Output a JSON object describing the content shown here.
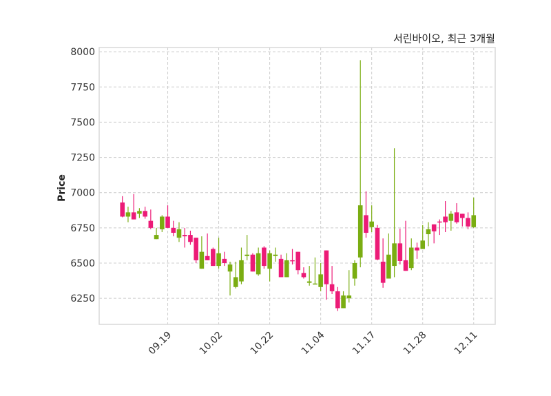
{
  "chart_data": {
    "type": "candlestick",
    "title": "서린바이오, 최근 3개월",
    "xlabel": "",
    "ylabel": "Price",
    "ylim": [
      6065,
      8030
    ],
    "xlim": [
      -4.1,
      65.8
    ],
    "grid": true,
    "colors": {
      "up": "#7aad12",
      "down": "#ec1b77",
      "grid": "#cccccc",
      "frame": "#d9d9d9"
    },
    "yticks": [
      6250,
      6500,
      6750,
      7000,
      7250,
      7500,
      7750,
      8000
    ],
    "xticks": [
      {
        "index": 8,
        "label": "09.19"
      },
      {
        "index": 17,
        "label": "10.02"
      },
      {
        "index": 26,
        "label": "10.22"
      },
      {
        "index": 35,
        "label": "11.04"
      },
      {
        "index": 44,
        "label": "11.17"
      },
      {
        "index": 53,
        "label": "11.28"
      },
      {
        "index": 62,
        "label": "12.11"
      }
    ],
    "ohlc_fields": [
      "open",
      "high",
      "low",
      "close"
    ],
    "candles": [
      [
        6930,
        6975,
        6825,
        6830
      ],
      [
        6830,
        6900,
        6790,
        6860
      ],
      [
        6860,
        6990,
        6810,
        6810
      ],
      [
        6850,
        6890,
        6820,
        6870
      ],
      [
        6870,
        6900,
        6815,
        6830
      ],
      [
        6800,
        6880,
        6740,
        6750
      ],
      [
        6670,
        6750,
        6670,
        6700
      ],
      [
        6740,
        6840,
        6720,
        6830
      ],
      [
        6830,
        6910,
        6750,
        6750
      ],
      [
        6750,
        6800,
        6690,
        6715
      ],
      [
        6680,
        6790,
        6650,
        6740
      ],
      [
        6700,
        6750,
        6610,
        6690
      ],
      [
        6700,
        6730,
        6630,
        6650
      ],
      [
        6680,
        6680,
        6500,
        6520
      ],
      [
        6460,
        6690,
        6460,
        6580
      ],
      [
        6550,
        6710,
        6520,
        6520
      ],
      [
        6600,
        6610,
        6480,
        6480
      ],
      [
        6480,
        6680,
        6460,
        6570
      ],
      [
        6530,
        6580,
        6480,
        6500
      ],
      [
        6440,
        6510,
        6270,
        6490
      ],
      [
        6330,
        6510,
        6320,
        6400
      ],
      [
        6370,
        6610,
        6350,
        6520
      ],
      [
        6550,
        6700,
        6520,
        6560
      ],
      [
        6560,
        6570,
        6440,
        6440
      ],
      [
        6420,
        6610,
        6410,
        6570
      ],
      [
        6610,
        6620,
        6460,
        6480
      ],
      [
        6460,
        6590,
        6370,
        6570
      ],
      [
        6550,
        6610,
        6510,
        6560
      ],
      [
        6530,
        6560,
        6400,
        6400
      ],
      [
        6400,
        6570,
        6400,
        6520
      ],
      [
        6520,
        6600,
        6490,
        6515
      ],
      [
        6580,
        6580,
        6420,
        6450
      ],
      [
        6430,
        6470,
        6390,
        6400
      ],
      [
        6360,
        6480,
        6340,
        6370
      ],
      [
        6350,
        6540,
        6350,
        6355
      ],
      [
        6330,
        6500,
        6300,
        6420
      ],
      [
        6590,
        6590,
        6240,
        6350
      ],
      [
        6350,
        6480,
        6280,
        6300
      ],
      [
        6300,
        6330,
        6160,
        6180
      ],
      [
        6180,
        6300,
        6180,
        6270
      ],
      [
        6250,
        6450,
        6220,
        6270
      ],
      [
        6390,
        6520,
        6340,
        6500
      ],
      [
        6540,
        7940,
        6470,
        6910
      ],
      [
        6840,
        7010,
        6680,
        6715
      ],
      [
        6755,
        6910,
        6720,
        6795
      ],
      [
        6750,
        6770,
        6520,
        6525
      ],
      [
        6510,
        6675,
        6325,
        6360
      ],
      [
        6390,
        6710,
        6390,
        6560
      ],
      [
        6480,
        7315,
        6400,
        6640
      ],
      [
        6640,
        6745,
        6490,
        6515
      ],
      [
        6520,
        6800,
        6445,
        6445
      ],
      [
        6465,
        6675,
        6450,
        6610
      ],
      [
        6610,
        6645,
        6530,
        6590
      ],
      [
        6600,
        6770,
        6600,
        6660
      ],
      [
        6705,
        6790,
        6620,
        6740
      ],
      [
        6775,
        6775,
        6640,
        6725
      ],
      [
        6795,
        6810,
        6700,
        6790
      ],
      [
        6830,
        6940,
        6720,
        6790
      ],
      [
        6800,
        6870,
        6730,
        6850
      ],
      [
        6860,
        6925,
        6780,
        6790
      ],
      [
        6850,
        6850,
        6760,
        6820
      ],
      [
        6820,
        6860,
        6740,
        6760
      ],
      [
        6755,
        6965,
        6750,
        6840
      ]
    ]
  }
}
